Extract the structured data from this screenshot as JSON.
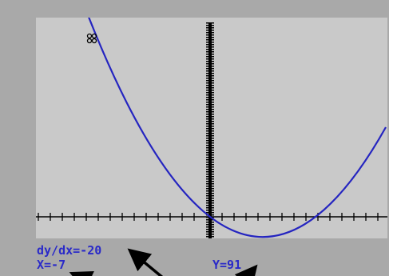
{
  "readout": {
    "slope": "dy/dx=-20",
    "x": "X=-7",
    "y": "Y=91"
  }
}
